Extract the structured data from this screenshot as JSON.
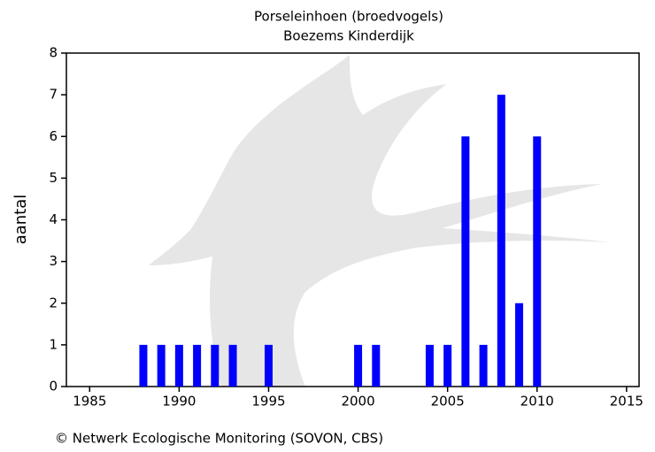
{
  "chart_data": {
    "type": "bar",
    "title": "Porseleinhoen (broedvogels)",
    "subtitle": "Boezems Kinderdijk",
    "y_label": "aantal",
    "footer": "© Netwerk Ecologische Monitoring (SOVON, CBS)",
    "x": [
      1988,
      1989,
      1990,
      1991,
      1992,
      1993,
      1995,
      2000,
      2001,
      2004,
      2005,
      2006,
      2007,
      2008,
      2009,
      2010
    ],
    "values": [
      1,
      1,
      1,
      1,
      1,
      1,
      1,
      1,
      1,
      1,
      1,
      6,
      1,
      7,
      2,
      6
    ],
    "color": "#0000ff",
    "xlim": [
      1983.7,
      2015.7
    ],
    "xticks": [
      1985,
      1990,
      1995,
      2000,
      2005,
      2010,
      2015
    ],
    "ylim": [
      0,
      8
    ],
    "yticks": [
      0,
      1,
      2,
      3,
      4,
      5,
      6,
      7,
      8
    ]
  }
}
